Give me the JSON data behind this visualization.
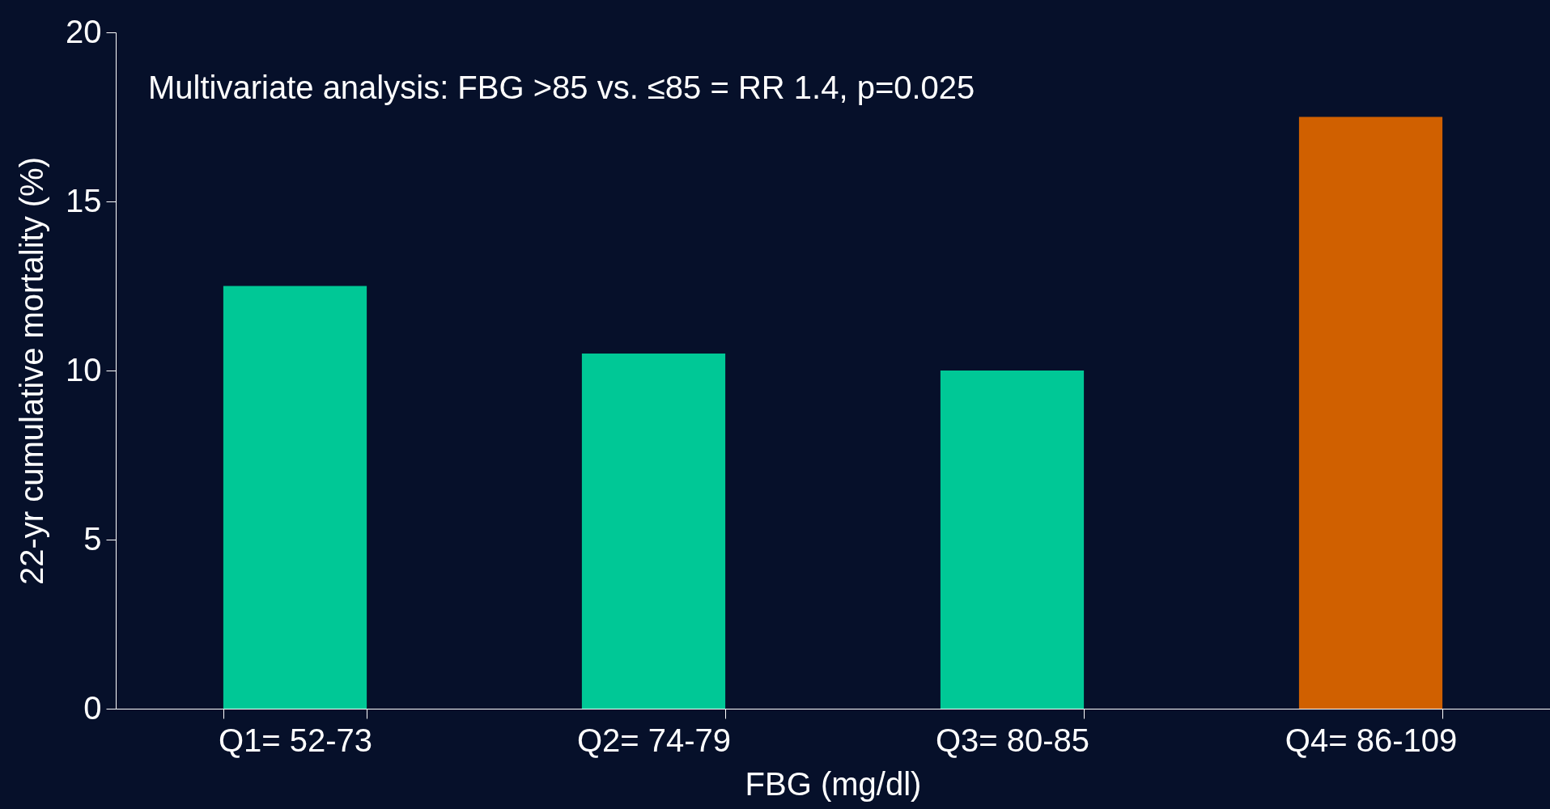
{
  "chart_data": {
    "type": "bar",
    "xlabel": "FBG (mg/dl)",
    "ylabel": "22-yr cumulative mortality (%)",
    "categories": [
      "Q1= 52-73",
      "Q2= 74-79",
      "Q3= 80-85",
      "Q4= 86-109"
    ],
    "values": [
      12.5,
      10.5,
      10,
      17.5
    ],
    "colors": [
      "#00c896",
      "#00c896",
      "#00c896",
      "#d06000"
    ],
    "ylim": [
      0,
      20
    ],
    "yticks": [
      0,
      5,
      10,
      15,
      20
    ],
    "grid": false,
    "annotations": [
      "Multivariate analysis: FBG >85 vs. ≤85 = RR 1.4, p=0.025"
    ]
  }
}
